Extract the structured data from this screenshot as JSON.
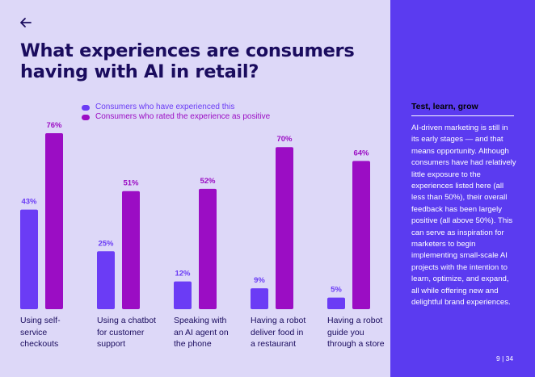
{
  "page": {
    "title": "What experiences are consumers having with AI in retail?",
    "back_icon": "arrow-left-icon",
    "page_number": "9 | 34"
  },
  "colors": {
    "background": "#ddd8f8",
    "panel": "#5b3bf0",
    "experienced": "#6b3cf5",
    "rated_positive": "#9b0dc4",
    "title": "#1a0c5e"
  },
  "chart_data": {
    "type": "bar",
    "title": "What experiences are consumers having with AI in retail?",
    "categories": [
      "Using self-service checkouts",
      "Using a chatbot for customer support",
      "Speaking with an AI agent on the phone",
      "Having a robot deliver food in a restaurant",
      "Having a robot guide you through a store"
    ],
    "category_lines": [
      [
        "Using self-",
        "service",
        "checkouts"
      ],
      [
        "Using a chatbot",
        "for customer",
        "support"
      ],
      [
        "Speaking with",
        "an AI agent on",
        "the phone"
      ],
      [
        "Having a robot",
        "deliver food in",
        "a restaurant"
      ],
      [
        "Having a robot",
        "guide you",
        "through a store"
      ]
    ],
    "series": [
      {
        "name": "Consumers who have experienced this",
        "values": [
          43,
          25,
          12,
          9,
          5
        ],
        "labels": [
          "43%",
          "25%",
          "12%",
          "9%",
          "5%"
        ]
      },
      {
        "name": "Consumers who rated the experience as positive",
        "values": [
          76,
          51,
          52,
          70,
          64
        ],
        "labels": [
          "76%",
          "51%",
          "52%",
          "70%",
          "64%"
        ]
      }
    ],
    "ylim": [
      0,
      100
    ],
    "xlabel": "",
    "ylabel": "",
    "legend": "top-left",
    "grid": false
  },
  "sidebar": {
    "heading": "Test, learn, grow",
    "body": "AI-driven marketing is still in its early stages — and that means opportunity. Although consumers have had relatively little exposure to the experiences listed here (all less than 50%), their overall feedback has been largely positive (all above 50%). This can serve as inspiration for marketers to begin implementing small-scale AI projects with the intention to learn, optimize, and expand, all while offering new and delightful brand experiences."
  }
}
